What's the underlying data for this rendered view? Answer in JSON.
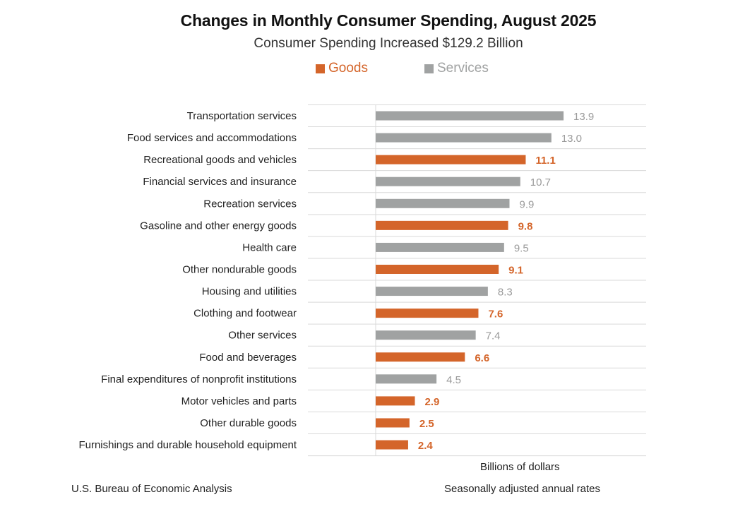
{
  "chart_data": {
    "type": "bar",
    "orientation": "horizontal",
    "title": "Changes in Monthly Consumer Spending, August 2025",
    "subtitle": "Consumer Spending Increased $129.2 Billion",
    "xlabel": "Billions of dollars",
    "ylabel": "",
    "xlim": [
      0,
      20
    ],
    "grid": "horizontal row separators",
    "legend_position": "top-center",
    "legend": [
      {
        "name": "Goods",
        "color": "#d4652a"
      },
      {
        "name": "Services",
        "color": "#a0a2a2"
      }
    ],
    "categories": [
      "Transportation services",
      "Food services and accommodations",
      "Recreational goods and vehicles",
      "Financial services and insurance",
      "Recreation services",
      "Gasoline and other energy goods",
      "Health care",
      "Other nondurable goods",
      "Housing and utilities",
      "Clothing and footwear",
      "Other services",
      "Food and beverages",
      "Final expenditures of nonprofit institutions",
      "Motor vehicles and parts",
      "Other durable goods",
      "Furnishings and durable household equipment"
    ],
    "values": [
      13.9,
      13.0,
      11.1,
      10.7,
      9.9,
      9.8,
      9.5,
      9.1,
      8.3,
      7.6,
      7.4,
      6.6,
      4.5,
      2.9,
      2.5,
      2.4
    ],
    "labels": [
      "13.9",
      "13.0",
      "11.1",
      "10.7",
      "9.9",
      "9.8",
      "9.5",
      "9.1",
      "8.3",
      "7.6",
      "7.4",
      "6.6",
      "4.5",
      "2.9",
      "2.5",
      "2.4"
    ],
    "groups": [
      "Services",
      "Services",
      "Goods",
      "Services",
      "Services",
      "Goods",
      "Services",
      "Goods",
      "Services",
      "Goods",
      "Services",
      "Goods",
      "Services",
      "Goods",
      "Goods",
      "Goods"
    ]
  },
  "colors": {
    "goods": "#d4652a",
    "services": "#a0a2a2",
    "goods_label": "#d4652a",
    "services_label": "#9a9a9a",
    "grid": "#d9d9d9"
  },
  "legend": {
    "goods_label": "Goods",
    "services_label": "Services"
  },
  "footer": {
    "source": "U.S. Bureau of Economic Analysis",
    "note": "Seasonally adjusted annual rates"
  }
}
